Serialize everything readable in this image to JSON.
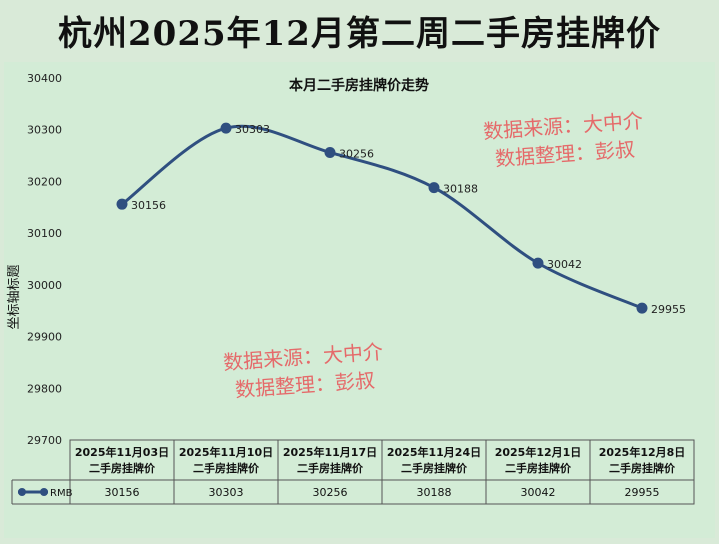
{
  "page": {
    "title": "杭州2025年12月第二周二手房挂牌价"
  },
  "watermark": {
    "line1": "数据来源：大中介",
    "line2": "数据整理：彭叔"
  },
  "colors": {
    "background": "#d9ead8",
    "series": "#2f4f80",
    "watermark": "#e56a6a"
  },
  "chart_data": {
    "type": "line",
    "title": "本月二手房挂牌价走势",
    "ylabel": "坐标轴标题",
    "xlabel": "",
    "ylim": [
      29700,
      30400
    ],
    "ytick_step": 100,
    "grid": false,
    "smooth": true,
    "categories": [
      "2025年11月03日 二手房挂牌价",
      "2025年11月10日 二手房挂牌价",
      "2025年11月17日 二手房挂牌价",
      "2025年11月24日 二手房挂牌价",
      "2025年12月1日 二手房挂牌价",
      "2025年12月8日 二手房挂牌价"
    ],
    "category_lines": [
      [
        "2025年11月03日",
        "二手房挂牌价"
      ],
      [
        "2025年11月10日",
        "二手房挂牌价"
      ],
      [
        "2025年11月17日",
        "二手房挂牌价"
      ],
      [
        "2025年11月24日",
        "二手房挂牌价"
      ],
      [
        "2025年12月1日",
        "二手房挂牌价"
      ],
      [
        "2025年12月8日",
        "二手房挂牌价"
      ]
    ],
    "series": [
      {
        "name": "RMB",
        "values": [
          30156,
          30303,
          30256,
          30188,
          30042,
          29955
        ]
      }
    ],
    "data_table": true
  }
}
